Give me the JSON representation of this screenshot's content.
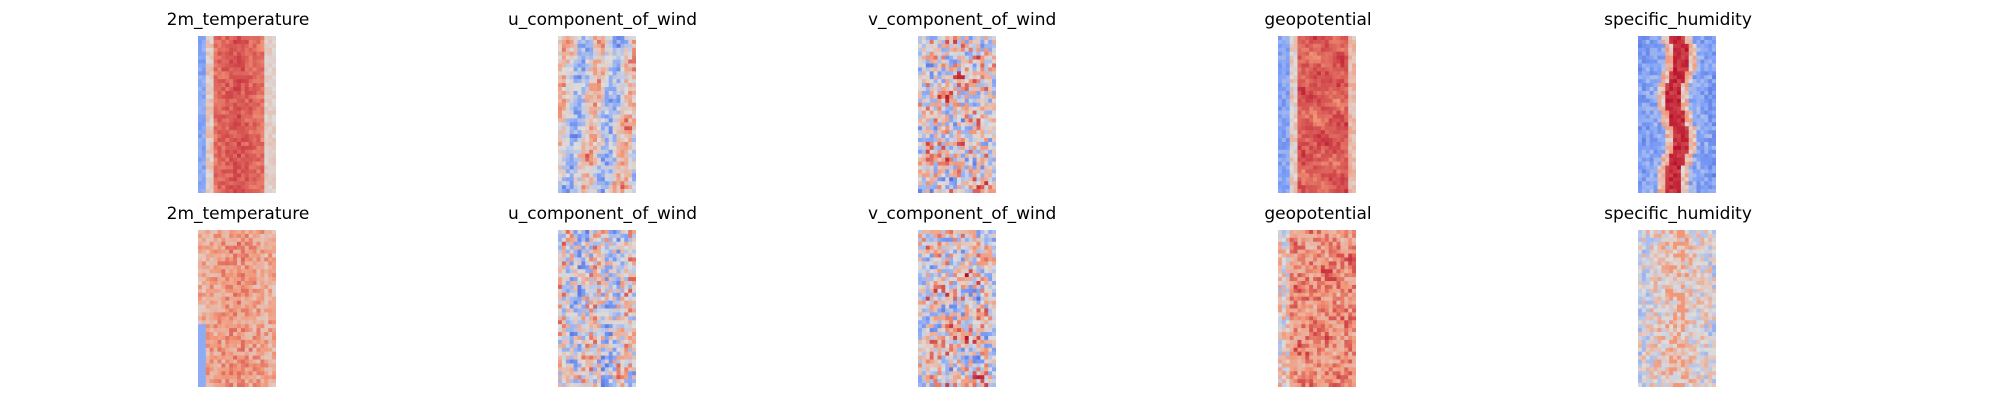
{
  "chart_data": [
    {
      "type": "heatmap",
      "title": "2m_temperature",
      "row": 1,
      "col": 1,
      "pattern": "temperature",
      "colormap": "coolwarm",
      "seed": 11
    },
    {
      "type": "heatmap",
      "title": "u_component_of_wind",
      "row": 1,
      "col": 2,
      "pattern": "wind",
      "colormap": "coolwarm",
      "seed": 23
    },
    {
      "type": "heatmap",
      "title": "v_component_of_wind",
      "row": 1,
      "col": 3,
      "pattern": "vwind",
      "colormap": "coolwarm",
      "seed": 37
    },
    {
      "type": "heatmap",
      "title": "geopotential",
      "row": 1,
      "col": 4,
      "pattern": "geopotential",
      "colormap": "coolwarm",
      "seed": 41
    },
    {
      "type": "heatmap",
      "title": "specific_humidity",
      "row": 1,
      "col": 5,
      "pattern": "humidity",
      "colormap": "coolwarm",
      "seed": 53
    },
    {
      "type": "heatmap",
      "title": "2m_temperature",
      "row": 2,
      "col": 1,
      "pattern": "temperature_noisy",
      "colormap": "coolwarm",
      "seed": 67
    },
    {
      "type": "heatmap",
      "title": "u_component_of_wind",
      "row": 2,
      "col": 2,
      "pattern": "wind_noisy",
      "colormap": "coolwarm",
      "seed": 79
    },
    {
      "type": "heatmap",
      "title": "v_component_of_wind",
      "row": 2,
      "col": 3,
      "pattern": "vwind_noisy",
      "colormap": "coolwarm",
      "seed": 83
    },
    {
      "type": "heatmap",
      "title": "geopotential",
      "row": 2,
      "col": 4,
      "pattern": "geopotential_noisy",
      "colormap": "coolwarm",
      "seed": 97
    },
    {
      "type": "heatmap",
      "title": "specific_humidity",
      "row": 2,
      "col": 5,
      "pattern": "humidity_noisy",
      "colormap": "coolwarm",
      "seed": 101
    }
  ]
}
